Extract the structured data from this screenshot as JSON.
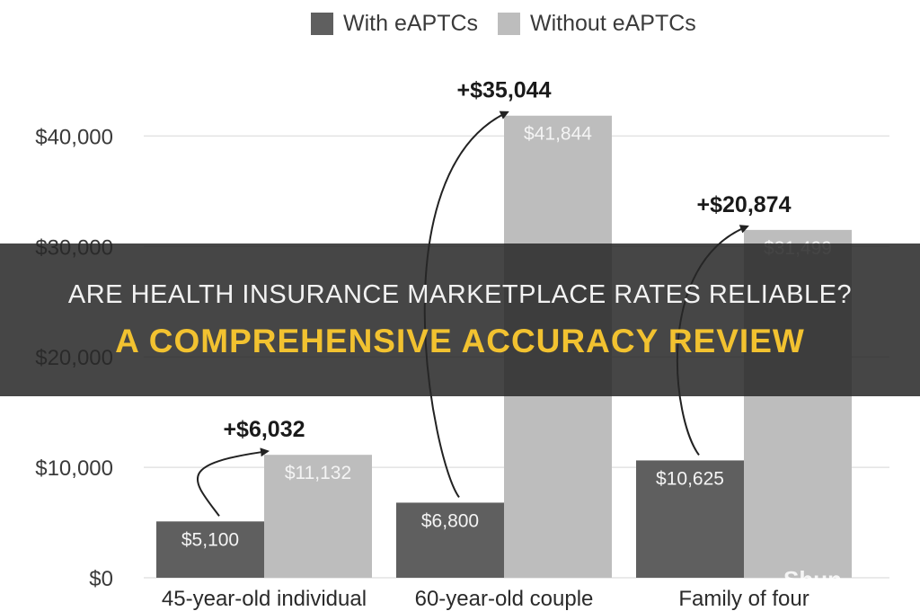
{
  "colors": {
    "with": "#5f5f5f",
    "without": "#bdbdbd",
    "arrow": "#222222",
    "accent": "#f2c230"
  },
  "legend": {
    "with_label": "With eAPTCs",
    "without_label": "Without eAPTCs"
  },
  "banner": {
    "line1": "ARE HEALTH INSURANCE MARKETPLACE RATES RELIABLE?",
    "line2": "A COMPREHENSIVE ACCURACY REVIEW"
  },
  "watermark": "Shun",
  "chart_data": {
    "type": "bar",
    "categories": [
      "45-year-old individual",
      "60-year-old couple",
      "Family of four"
    ],
    "series": [
      {
        "name": "With eAPTCs",
        "values": [
          5100,
          6800,
          10625
        ],
        "labels": [
          "$5,100",
          "$6,800",
          "$10,625"
        ]
      },
      {
        "name": "Without eAPTCs",
        "values": [
          11132,
          41844,
          31499
        ],
        "labels": [
          "$11,132",
          "$41,844",
          "$31,499"
        ]
      }
    ],
    "differences": [
      "+$6,032",
      "+$35,044",
      "+$20,874"
    ],
    "yticks": [
      0,
      10000,
      20000,
      30000,
      40000
    ],
    "ytick_labels": [
      "$0",
      "$10,000",
      "$20,000",
      "$30,000",
      "$40,000"
    ],
    "ylim": [
      0,
      45000
    ],
    "grid": true,
    "legend_position": "top"
  }
}
